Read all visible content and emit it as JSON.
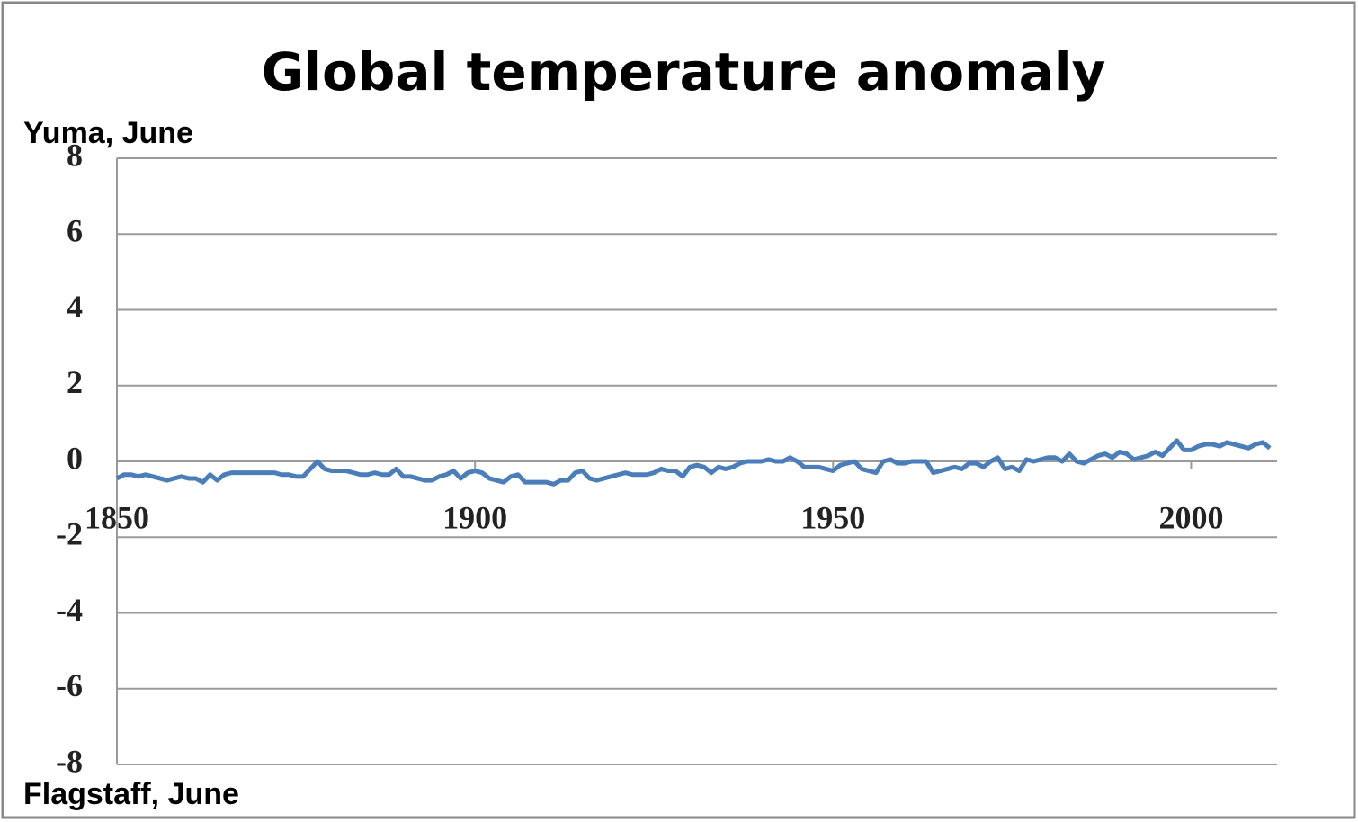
{
  "chart_data": {
    "type": "line",
    "title": "Global temperature anomaly",
    "annotations": [
      "Yuma, June",
      "Flagstaff, June"
    ],
    "color": "#4a7ebb",
    "x": [
      1850,
      1851,
      1852,
      1853,
      1854,
      1855,
      1856,
      1857,
      1858,
      1859,
      1860,
      1861,
      1862,
      1863,
      1864,
      1865,
      1866,
      1867,
      1868,
      1869,
      1870,
      1871,
      1872,
      1873,
      1874,
      1875,
      1876,
      1877,
      1878,
      1879,
      1880,
      1881,
      1882,
      1883,
      1884,
      1885,
      1886,
      1887,
      1888,
      1889,
      1890,
      1891,
      1892,
      1893,
      1894,
      1895,
      1896,
      1897,
      1898,
      1899,
      1900,
      1901,
      1902,
      1903,
      1904,
      1905,
      1906,
      1907,
      1908,
      1909,
      1910,
      1911,
      1912,
      1913,
      1914,
      1915,
      1916,
      1917,
      1918,
      1919,
      1920,
      1921,
      1922,
      1923,
      1924,
      1925,
      1926,
      1927,
      1928,
      1929,
      1930,
      1931,
      1932,
      1933,
      1934,
      1935,
      1936,
      1937,
      1938,
      1939,
      1940,
      1941,
      1942,
      1943,
      1944,
      1945,
      1946,
      1947,
      1948,
      1949,
      1950,
      1951,
      1952,
      1953,
      1954,
      1955,
      1956,
      1957,
      1958,
      1959,
      1960,
      1961,
      1962,
      1963,
      1964,
      1965,
      1966,
      1967,
      1968,
      1969,
      1970,
      1971,
      1972,
      1973,
      1974,
      1975,
      1976,
      1977,
      1978,
      1979,
      1980,
      1981,
      1982,
      1983,
      1984,
      1985,
      1986,
      1987,
      1988,
      1989,
      1990,
      1991,
      1992,
      1993,
      1994,
      1995,
      1996,
      1997,
      1998,
      1999,
      2000,
      2001,
      2002,
      2003,
      2004,
      2005,
      2006,
      2007,
      2008,
      2009,
      2010,
      2011
    ],
    "values": [
      -0.45,
      -0.35,
      -0.35,
      -0.4,
      -0.35,
      -0.4,
      -0.45,
      -0.5,
      -0.45,
      -0.4,
      -0.45,
      -0.45,
      -0.55,
      -0.35,
      -0.5,
      -0.35,
      -0.3,
      -0.3,
      -0.3,
      -0.3,
      -0.3,
      -0.3,
      -0.3,
      -0.35,
      -0.35,
      -0.4,
      -0.4,
      -0.2,
      0.0,
      -0.2,
      -0.25,
      -0.25,
      -0.25,
      -0.3,
      -0.35,
      -0.35,
      -0.3,
      -0.35,
      -0.35,
      -0.2,
      -0.4,
      -0.4,
      -0.45,
      -0.5,
      -0.5,
      -0.4,
      -0.35,
      -0.25,
      -0.45,
      -0.3,
      -0.25,
      -0.3,
      -0.45,
      -0.5,
      -0.55,
      -0.4,
      -0.35,
      -0.55,
      -0.55,
      -0.55,
      -0.55,
      -0.6,
      -0.5,
      -0.5,
      -0.3,
      -0.25,
      -0.45,
      -0.5,
      -0.45,
      -0.4,
      -0.35,
      -0.3,
      -0.35,
      -0.35,
      -0.35,
      -0.3,
      -0.2,
      -0.25,
      -0.25,
      -0.4,
      -0.15,
      -0.1,
      -0.15,
      -0.3,
      -0.15,
      -0.2,
      -0.15,
      -0.05,
      0.0,
      0.0,
      0.0,
      0.05,
      0.0,
      0.0,
      0.1,
      0.0,
      -0.15,
      -0.15,
      -0.15,
      -0.2,
      -0.25,
      -0.1,
      -0.05,
      0.0,
      -0.2,
      -0.25,
      -0.3,
      0.0,
      0.05,
      -0.05,
      -0.05,
      0.0,
      0.0,
      0.0,
      -0.3,
      -0.25,
      -0.2,
      -0.15,
      -0.2,
      -0.05,
      -0.05,
      -0.15,
      0.0,
      0.1,
      -0.2,
      -0.15,
      -0.25,
      0.05,
      0.0,
      0.05,
      0.1,
      0.1,
      0.0,
      0.2,
      0.0,
      -0.05,
      0.05,
      0.15,
      0.2,
      0.1,
      0.25,
      0.2,
      0.05,
      0.1,
      0.15,
      0.25,
      0.15,
      0.35,
      0.55,
      0.3,
      0.3,
      0.4,
      0.45,
      0.45,
      0.4,
      0.5,
      0.45,
      0.4,
      0.35,
      0.45,
      0.5,
      0.35
    ],
    "xlim": [
      1850,
      2012
    ],
    "xticks": [
      1850,
      1900,
      1950,
      2000
    ],
    "ylim": [
      -8,
      8
    ],
    "yticks": [
      -8,
      -6,
      -4,
      -2,
      0,
      2,
      4,
      6,
      8
    ],
    "grid": true
  }
}
